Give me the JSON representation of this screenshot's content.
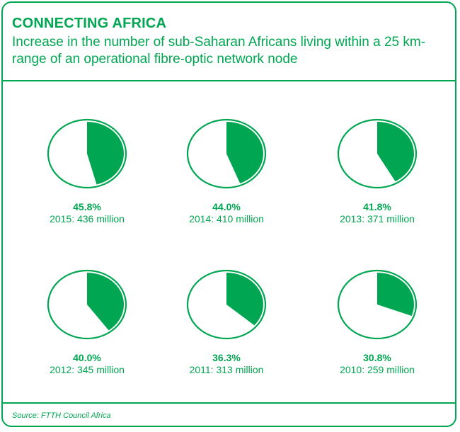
{
  "header": {
    "title": "CONNECTING AFRICA",
    "subtitle": "Increase in the number of sub-Saharan Africans living within a 25 km-range of an operational fibre-optic network node"
  },
  "footer": {
    "source": "Source: FTTH Council Africa"
  },
  "colors": {
    "accent": "#00a651",
    "background": "#ffffff"
  },
  "chart_data": {
    "type": "pie",
    "title": "CONNECTING AFRICA",
    "subtitle": "Increase in the number of sub-Saharan Africans living within a 25 km-range of an operational fibre-optic network node",
    "unit": "percent",
    "items": [
      {
        "percent_label": "45.8%",
        "label": "2015: 436 million",
        "year": 2015,
        "percent": 45.8,
        "people_millions": 436
      },
      {
        "percent_label": "44.0%",
        "label": "2014: 410 million",
        "year": 2014,
        "percent": 44.0,
        "people_millions": 410
      },
      {
        "percent_label": "41.8%",
        "label": "2013: 371 million",
        "year": 2013,
        "percent": 41.8,
        "people_millions": 371
      },
      {
        "percent_label": "40.0%",
        "label": "2012: 345 million",
        "year": 2012,
        "percent": 40.0,
        "people_millions": 345
      },
      {
        "percent_label": "36.3%",
        "label": "2011: 313 million",
        "year": 2011,
        "percent": 36.3,
        "people_millions": 313
      },
      {
        "percent_label": "30.8%",
        "label": "2010: 259 million",
        "year": 2010,
        "percent": 30.8,
        "people_millions": 259
      }
    ]
  }
}
